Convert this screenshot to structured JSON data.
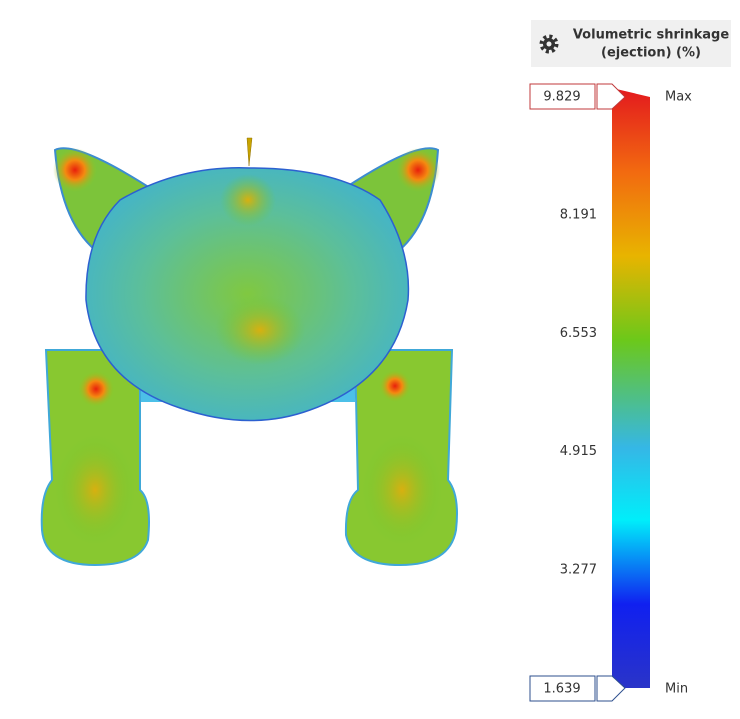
{
  "legend": {
    "title": [
      "Volumetric shrinkage",
      "(ejection) (%)"
    ],
    "max": 9.829,
    "min": 1.639,
    "max_label": "Max",
    "min_label": "Min",
    "ticks": [
      8.191,
      6.553,
      4.915,
      3.277
    ]
  }
}
